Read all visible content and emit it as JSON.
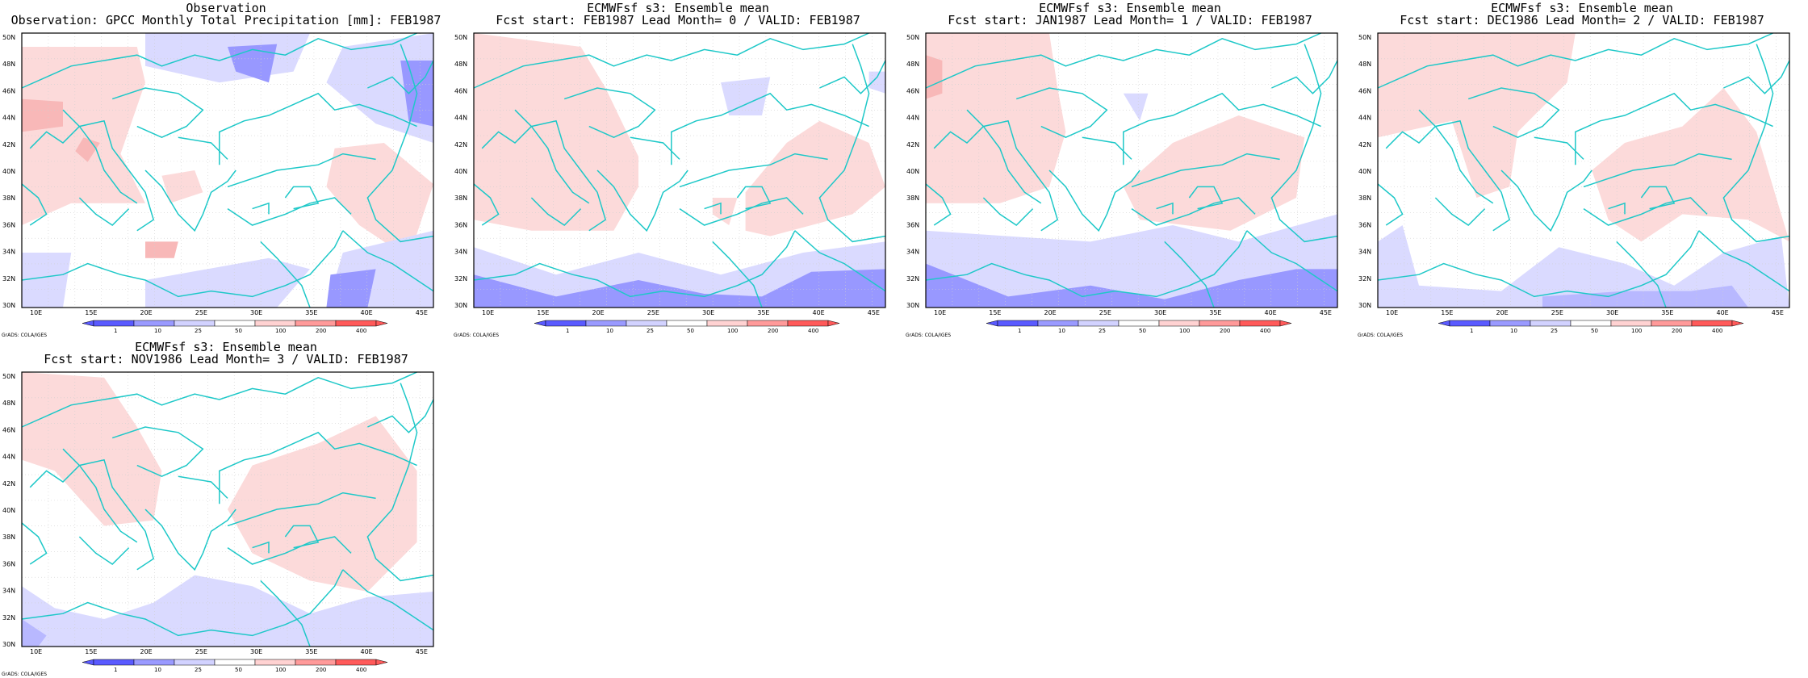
{
  "panels": [
    {
      "title1": "Observation",
      "title2": "Observation: GPCC Monthly Total Precipitation [mm]: FEB1987"
    },
    {
      "title1": "ECMWFsf s3: Ensemble mean",
      "title2": "Fcst start: FEB1987  Lead Month= 0 / VALID: FEB1987"
    },
    {
      "title1": "ECMWFsf s3: Ensemble mean",
      "title2": "Fcst start: JAN1987  Lead Month= 1 / VALID: FEB1987"
    },
    {
      "title1": "ECMWFsf s3: Ensemble mean",
      "title2": "Fcst start: DEC1986  Lead Month= 2 / VALID: FEB1987"
    },
    {
      "title1": "ECMWFsf s3: Ensemble mean",
      "title2": "Fcst start: NOV1986  Lead Month= 3 / VALID: FEB1987"
    }
  ],
  "lat_labels": [
    "30N",
    "32N",
    "34N",
    "36N",
    "38N",
    "40N",
    "42N",
    "44N",
    "46N",
    "48N",
    "50N"
  ],
  "lon_labels": [
    "10E",
    "15E",
    "20E",
    "25E",
    "30E",
    "35E",
    "40E",
    "45E"
  ],
  "colorbar_labels": [
    "1",
    "10",
    "25",
    "50",
    "100",
    "200",
    "400"
  ],
  "colorbar_colors": [
    "#5a5aff",
    "#9a9aff",
    "#d2d2ff",
    "#ffffff",
    "#ffd2d2",
    "#ff9a9a",
    "#ff5a5a"
  ],
  "credit": "GrADS: COLA/IGES",
  "coast_color": "#1ec8c8"
}
